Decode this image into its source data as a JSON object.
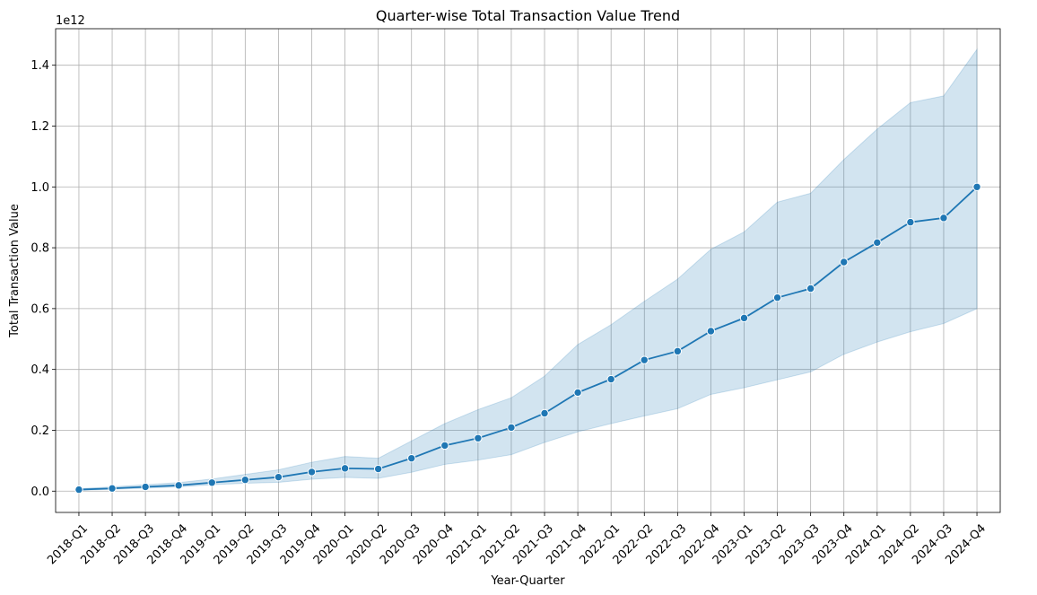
{
  "chart_data": {
    "type": "line",
    "title": "Quarter-wise Total Transaction Value Trend",
    "xlabel": "Year-Quarter",
    "ylabel": "Total Transaction Value",
    "y_offset_label": "1e12",
    "y_scale": 1000000000000.0,
    "ylim": [
      -0.07,
      1.52
    ],
    "yticks": [
      "0.0",
      "0.2",
      "0.4",
      "0.6",
      "0.8",
      "1.0",
      "1.2",
      "1.4"
    ],
    "grid": true,
    "legend": "none",
    "colors": {
      "line": "#1f77b4",
      "band": "#1f77b4",
      "grid": "#b0b0b0",
      "axis": "#000000"
    },
    "categories": [
      "2018-Q1",
      "2018-Q2",
      "2018-Q3",
      "2018-Q4",
      "2019-Q1",
      "2019-Q2",
      "2019-Q3",
      "2019-Q4",
      "2020-Q1",
      "2020-Q2",
      "2020-Q3",
      "2020-Q4",
      "2021-Q1",
      "2021-Q2",
      "2021-Q3",
      "2021-Q4",
      "2022-Q1",
      "2022-Q2",
      "2022-Q3",
      "2022-Q4",
      "2023-Q1",
      "2023-Q2",
      "2023-Q3",
      "2023-Q4",
      "2024-Q1",
      "2024-Q2",
      "2024-Q3",
      "2024-Q4"
    ],
    "series": [
      {
        "values": [
          0.005,
          0.009,
          0.014,
          0.019,
          0.028,
          0.037,
          0.046,
          0.063,
          0.075,
          0.073,
          0.108,
          0.15,
          0.174,
          0.209,
          0.256,
          0.324,
          0.368,
          0.431,
          0.46,
          0.526,
          0.569,
          0.636,
          0.666,
          0.753,
          0.817,
          0.884,
          0.898,
          1.0
        ],
        "ci_lower": [
          0.003,
          0.006,
          0.01,
          0.014,
          0.021,
          0.026,
          0.029,
          0.039,
          0.045,
          0.042,
          0.062,
          0.088,
          0.102,
          0.12,
          0.16,
          0.195,
          0.222,
          0.247,
          0.271,
          0.318,
          0.34,
          0.366,
          0.392,
          0.45,
          0.49,
          0.524,
          0.551,
          0.6
        ],
        "ci_upper": [
          0.008,
          0.014,
          0.021,
          0.028,
          0.04,
          0.055,
          0.07,
          0.095,
          0.114,
          0.108,
          0.165,
          0.222,
          0.268,
          0.307,
          0.378,
          0.482,
          0.547,
          0.624,
          0.697,
          0.795,
          0.852,
          0.95,
          0.979,
          1.09,
          1.19,
          1.277,
          1.299,
          1.452
        ]
      }
    ]
  }
}
